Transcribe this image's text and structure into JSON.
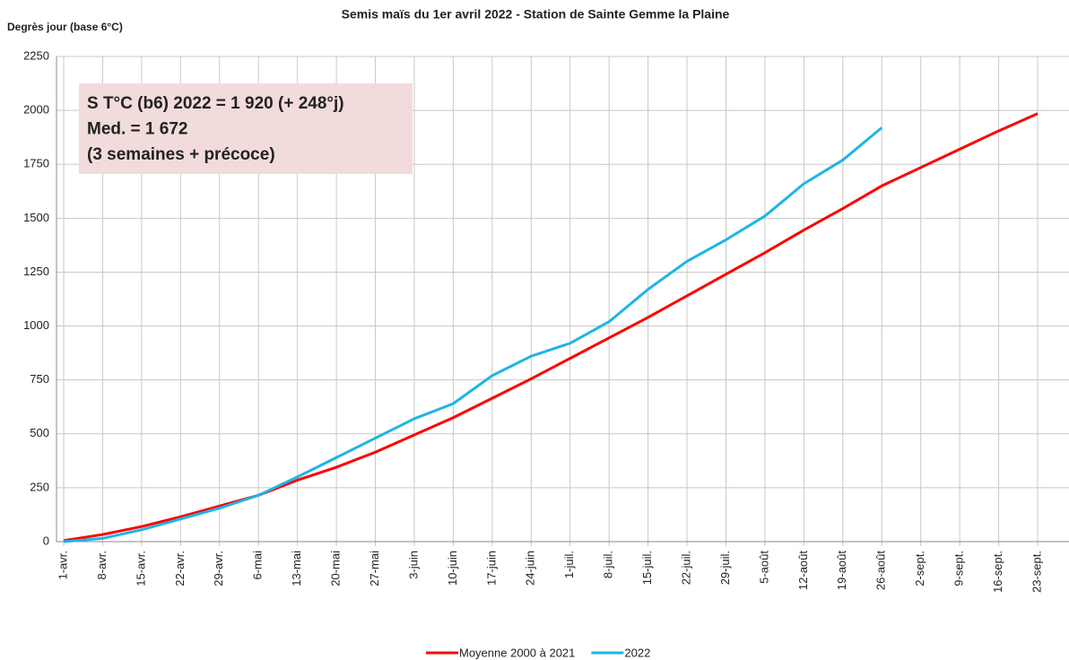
{
  "chart_data": {
    "type": "line",
    "subtitle": "Semis maïs du 1er avril 2022 - Station de Sainte Gemme la Plaine",
    "y_label": "Degrès jour (base 6°C)",
    "annotations": [
      "S T°C (b6) 2022 = 1 920 (+ 248°j)",
      "Med. = 1 672",
      "(3 semaines + précoce)"
    ],
    "categories": [
      "1-avr.",
      "8-avr.",
      "15-avr.",
      "22-avr.",
      "29-avr.",
      "6-mai",
      "13-mai",
      "20-mai",
      "27-mai",
      "3-juin",
      "10-juin",
      "17-juin",
      "24-juin",
      "1-juil.",
      "8-juil.",
      "15-juil.",
      "22-juil.",
      "29-juil.",
      "5-août",
      "12-août",
      "19-août",
      "26-août",
      "2-sept.",
      "9-sept.",
      "16-sept.",
      "23-sept."
    ],
    "series": [
      {
        "name": "Moyenne 2000 à 2021",
        "color": "#ff0000",
        "values": [
          5,
          33,
          70,
          115,
          165,
          215,
          285,
          345,
          415,
          495,
          575,
          665,
          755,
          850,
          945,
          1040,
          1140,
          1240,
          1340,
          1445,
          1545,
          1650,
          1735,
          1820,
          1905,
          1985
        ]
      },
      {
        "name": "2022",
        "color": "#1fb4e6",
        "values": [
          0,
          15,
          55,
          105,
          155,
          215,
          300,
          390,
          480,
          570,
          640,
          770,
          860,
          920,
          1020,
          1170,
          1300,
          1400,
          1510,
          1660,
          1770,
          1920,
          null,
          null,
          null,
          null
        ]
      }
    ],
    "ylim": [
      0,
      2250
    ],
    "yticks": [
      0,
      250,
      500,
      750,
      1000,
      1250,
      1500,
      1750,
      2000,
      2250
    ],
    "grid": true,
    "legend": "bottom"
  }
}
